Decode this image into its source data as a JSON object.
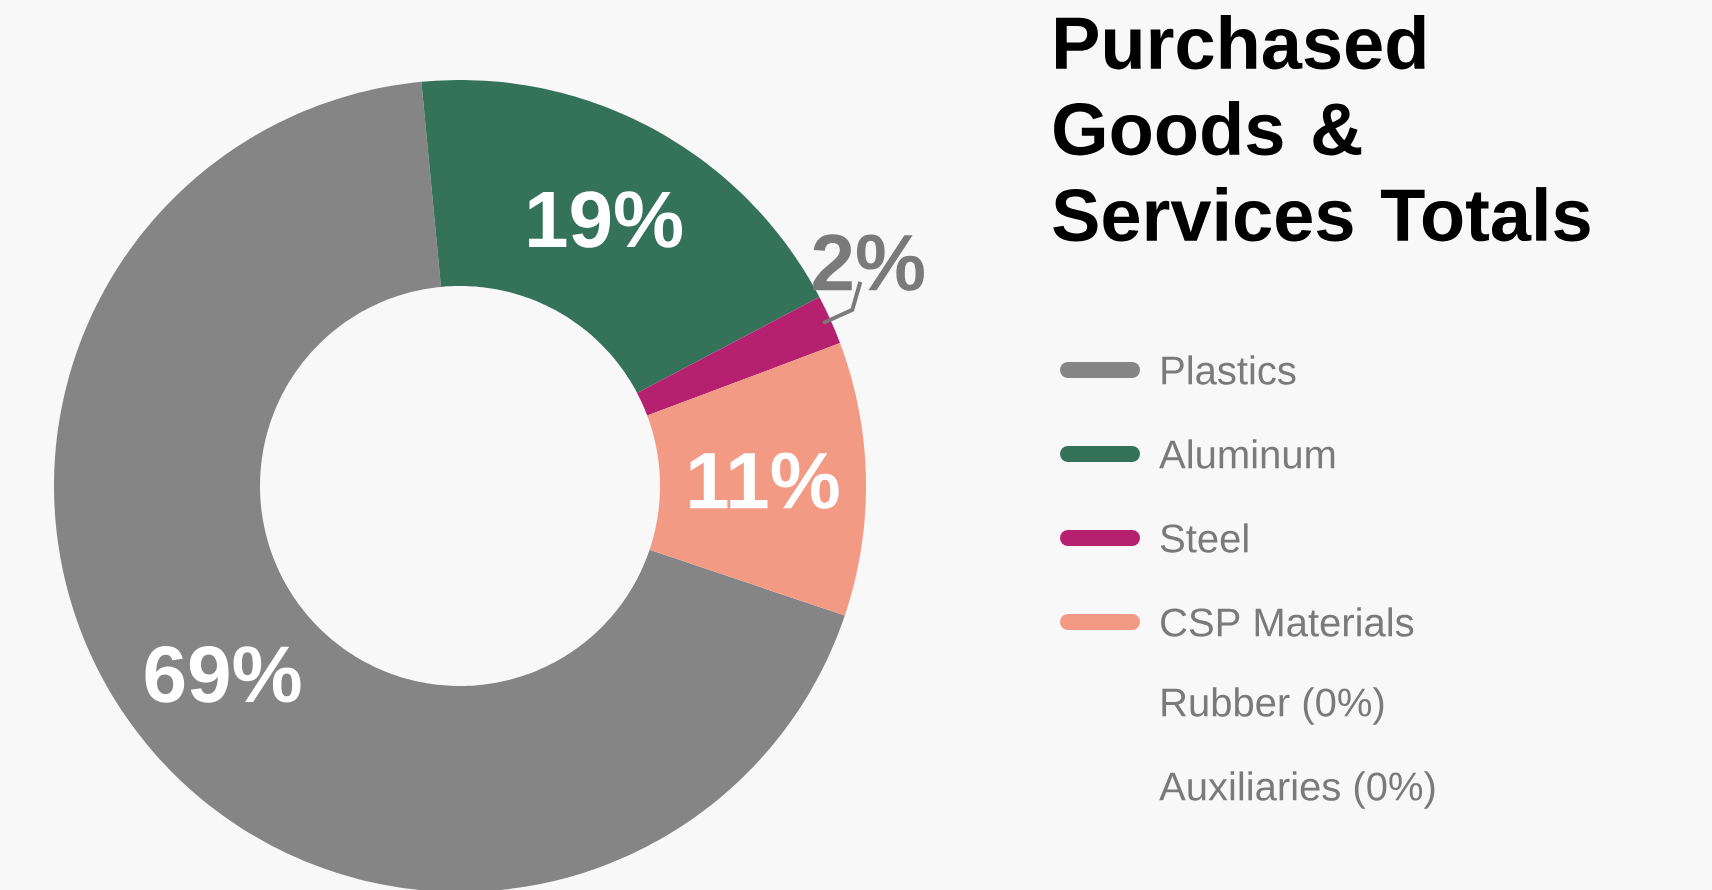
{
  "chart_data": {
    "type": "donut",
    "title": "Purchased Goods & Services Totals",
    "categories": [
      "Plastics",
      "Aluminum",
      "Steel",
      "CSP Materials",
      "Rubber (0%)",
      "Auxiliaries (0%)"
    ],
    "values": [
      69,
      19,
      2,
      11,
      0,
      0
    ],
    "colors": [
      "#858585",
      "#34735a",
      "#b5216e",
      "#f39a85",
      null,
      null
    ],
    "value_labels": [
      "69%",
      "19%",
      "2%",
      "11%",
      null,
      null
    ],
    "legend": "right"
  }
}
